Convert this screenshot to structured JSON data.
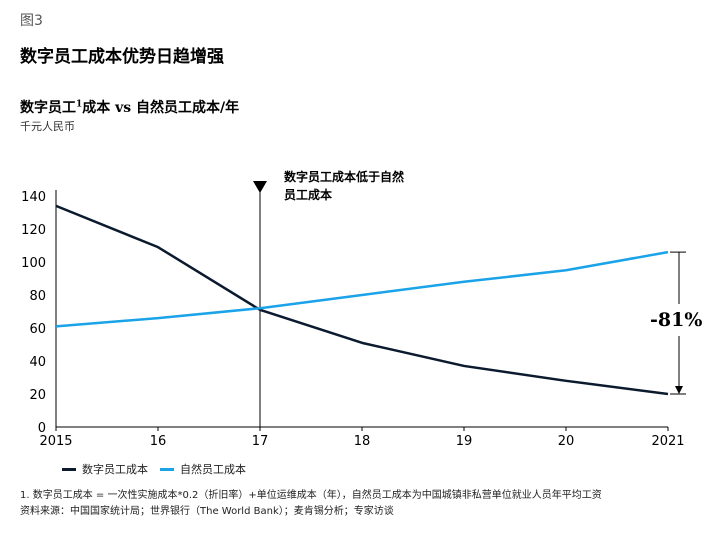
{
  "figure_label": "图3",
  "headline": "数字员工成本优势日趋增强",
  "chart_title_main": "数字员工",
  "chart_title_sup": "1",
  "chart_title_rest": "成本 vs 自然员工成本/年",
  "unit": "千元人民币",
  "annotation": "数字员工成本低于自然员工成本",
  "percent_label": "-81%",
  "legend": {
    "digital": "数字员工成本",
    "natural": "自然员工成本"
  },
  "colors": {
    "digital": "#0b1a2e",
    "natural": "#1aa3e8"
  },
  "footnote": {
    "line1": "1.  数字员工成本 = 一次性实施成本*0.2（折旧率）+单位运维成本（年），自然员工成本为中国城镇非私营单位就业人员年平均工资",
    "line2": "资料来源：中国国家统计局；世界银行（The World Bank）；麦肯锡分析；专家访谈"
  },
  "chart_data": {
    "type": "line",
    "x": [
      2015,
      2016,
      2017,
      2018,
      2019,
      2020,
      2021
    ],
    "x_tick_labels": [
      "2015",
      "16",
      "17",
      "18",
      "19",
      "20",
      "2021"
    ],
    "ylim": [
      0,
      140
    ],
    "y_ticks": [
      0,
      20,
      40,
      60,
      80,
      100,
      120,
      140
    ],
    "y_tick_labels": [
      "0",
      "20",
      "40",
      "60",
      "80",
      "100",
      "120",
      "140"
    ],
    "grid": false,
    "legend_position": "bottom-left",
    "marker_year": 2017,
    "series": [
      {
        "key": "digital",
        "values": [
          134,
          109,
          71,
          51,
          37,
          28,
          20
        ]
      },
      {
        "key": "natural",
        "values": [
          61,
          66,
          72,
          80,
          88,
          95,
          106
        ]
      }
    ]
  }
}
